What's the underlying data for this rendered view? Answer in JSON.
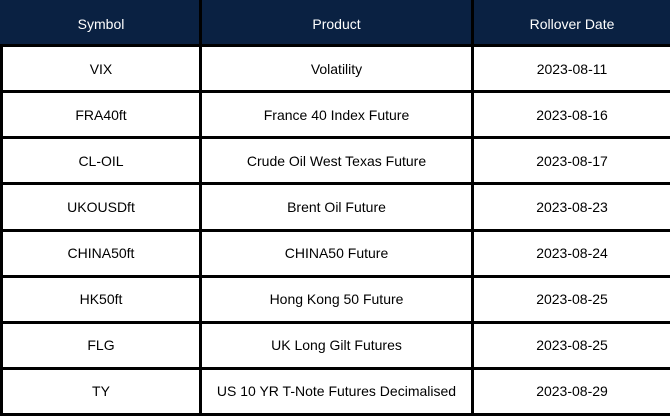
{
  "colors": {
    "header_bg": "#0a2142",
    "header_text": "#ffffff",
    "border": "#000000",
    "row_bg": "#ffffff",
    "row_text": "#000000"
  },
  "table": {
    "headers": [
      "Symbol",
      "Product",
      "Rollover Date"
    ],
    "rows": [
      [
        "VIX",
        "Volatility",
        "2023-08-11"
      ],
      [
        "FRA40ft",
        "France 40 Index Future",
        "2023-08-16"
      ],
      [
        "CL-OIL",
        "Crude Oil West Texas Future",
        "2023-08-17"
      ],
      [
        "UKOUSDft",
        "Brent Oil Future",
        "2023-08-23"
      ],
      [
        "CHINA50ft",
        "CHINA50 Future",
        "2023-08-24"
      ],
      [
        "HK50ft",
        "Hong Kong 50 Future",
        "2023-08-25"
      ],
      [
        "FLG",
        "UK Long Gilt Futures",
        "2023-08-25"
      ],
      [
        "TY",
        "US 10 YR T-Note Futures Decimalised",
        "2023-08-29"
      ]
    ]
  }
}
